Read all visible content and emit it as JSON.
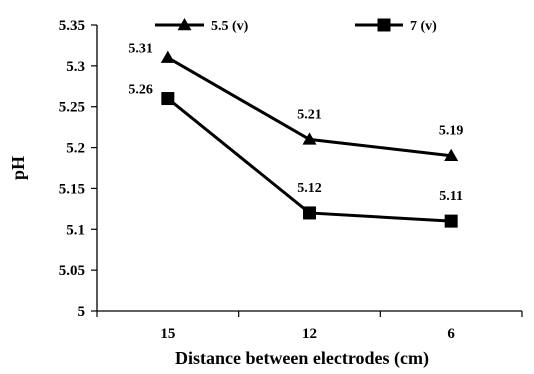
{
  "chart_data": {
    "type": "line",
    "categories": [
      "15",
      "12",
      "6"
    ],
    "series": [
      {
        "name": "5.5 (v)",
        "marker": "triangle",
        "values": [
          5.31,
          5.21,
          5.19
        ],
        "labels": [
          "5.31",
          "5.21",
          "5.19"
        ]
      },
      {
        "name": "7 (v)",
        "marker": "square",
        "values": [
          5.26,
          5.12,
          5.11
        ],
        "labels": [
          "5.26",
          "5.12",
          "5.11"
        ]
      }
    ],
    "title": "",
    "xlabel": "Distance between electrodes (cm)",
    "ylabel": "pH",
    "ylim": [
      5,
      5.35
    ],
    "yticks": [
      "5",
      "5.05",
      "5.1",
      "5.15",
      "5.2",
      "5.25",
      "5.3",
      "5.35"
    ],
    "grid": false,
    "legend": "top",
    "colors": {
      "line": "#000000",
      "background": "#ffffff"
    }
  }
}
